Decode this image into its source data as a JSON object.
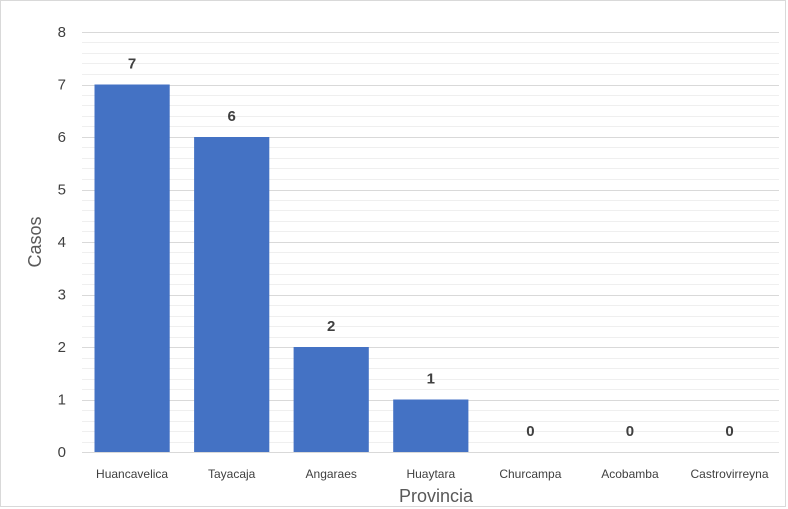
{
  "chart_data": {
    "type": "bar",
    "title": "",
    "xlabel": "Provincia",
    "ylabel": "Casos",
    "categories": [
      "Huancavelica",
      "Tayacaja",
      "Angaraes",
      "Huaytara",
      "Churcampa",
      "Acobamba",
      "Castrovirreyna"
    ],
    "values": [
      7,
      6,
      2,
      1,
      0,
      0,
      0
    ],
    "data_labels": [
      "7",
      "6",
      "2",
      "1",
      "0",
      "0",
      "0"
    ],
    "ylim": [
      0,
      8
    ],
    "yticks": [
      "0",
      "1",
      "2",
      "3",
      "4",
      "5",
      "6",
      "7",
      "8"
    ],
    "grid": "major and minor horizontal",
    "legend": "none",
    "colors": {
      "bar": "#4472c4",
      "major_grid": "#d9d9d9",
      "minor_grid": "#efefef",
      "text": "#404040",
      "axis_title": "#595959"
    }
  }
}
